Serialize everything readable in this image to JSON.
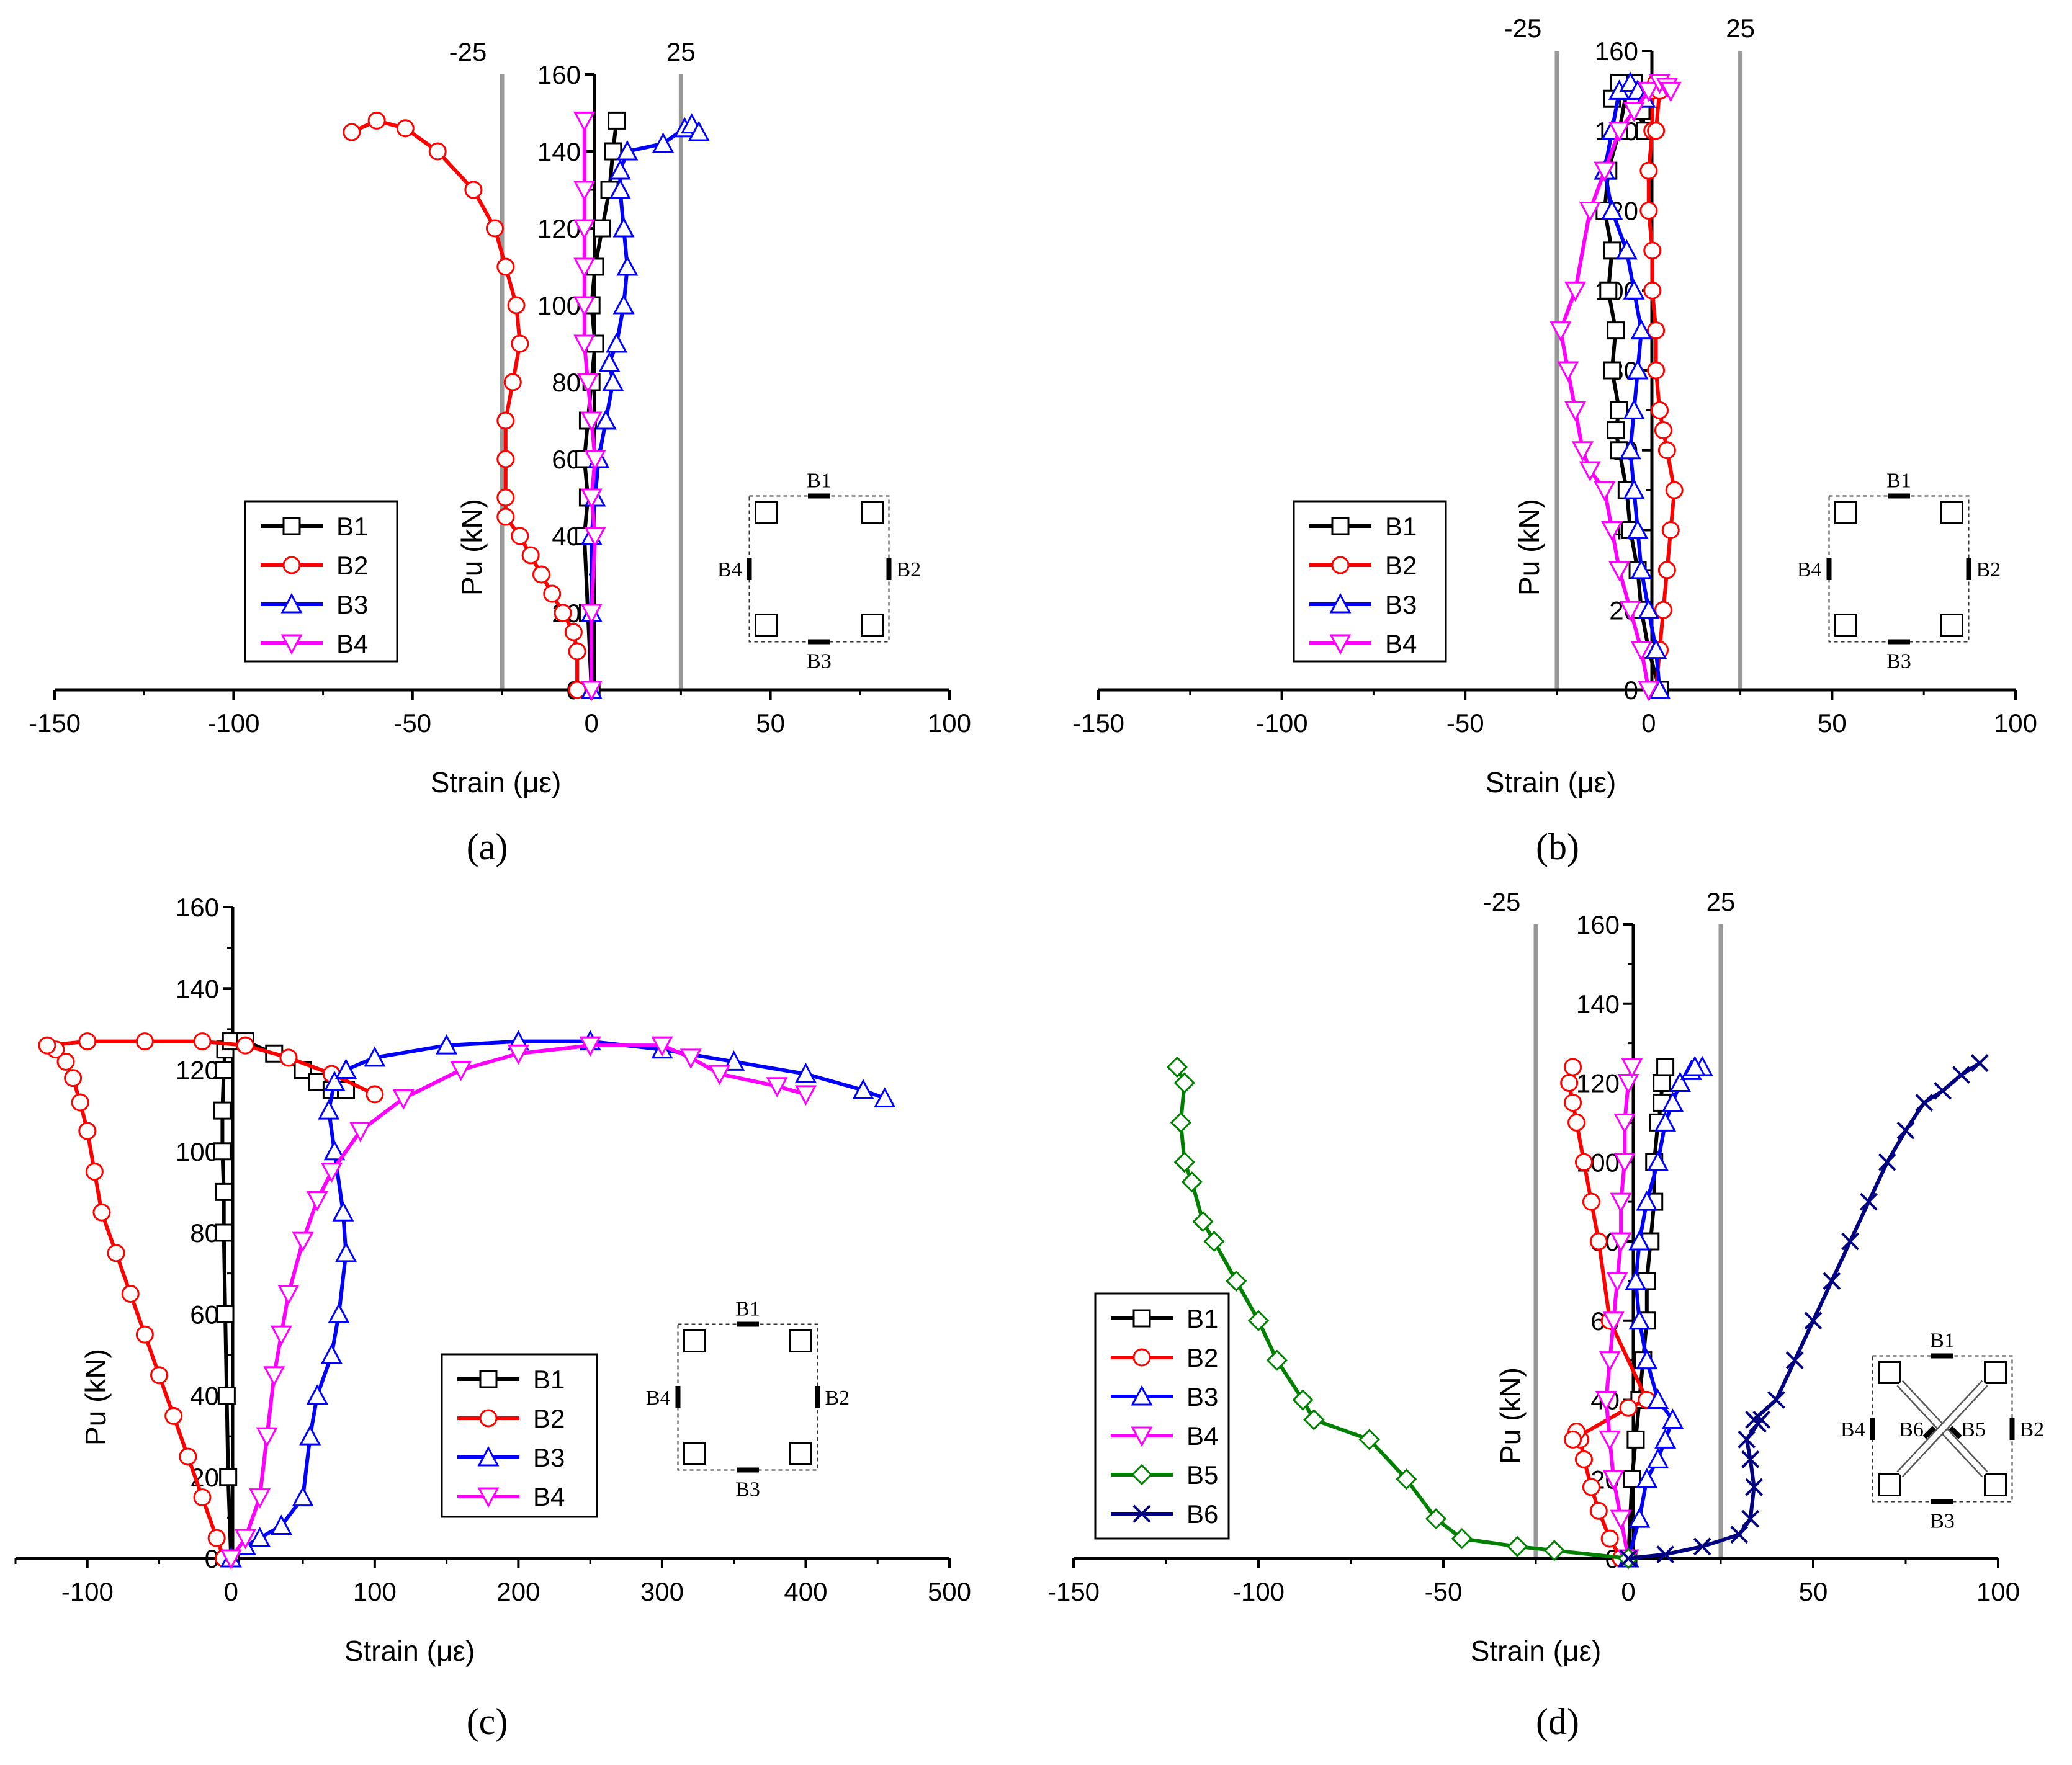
{
  "colors": {
    "B1": "#000000",
    "B2": "#ff0000",
    "B3": "#0000ff",
    "B4": "#ff00ff",
    "B5": "#008000",
    "B6": "#000080",
    "refline": "#999999"
  },
  "chart_data": [
    {
      "panel": "(a)",
      "type": "line",
      "xlabel": "Strain (με)",
      "ylabel": "Pu (kN)",
      "xlim": [
        -150,
        100
      ],
      "ylim": [
        0,
        160
      ],
      "xticks": [
        "-150",
        "-100",
        "-50",
        "0",
        "50",
        "100"
      ],
      "yticks": [
        "0",
        "20",
        "40",
        "60",
        "80",
        "100",
        "120",
        "140",
        "160"
      ],
      "ref_lines": [
        -25,
        25
      ],
      "ref_labels": [
        "-25",
        "25"
      ],
      "legend": [
        "B1",
        "B2",
        "B3",
        "B4"
      ],
      "legend_position": "bottom-left",
      "section_labels": [
        "B1",
        "B2",
        "B3",
        "B4"
      ],
      "series": [
        {
          "name": "B1",
          "marker": "square",
          "x": [
            0,
            -1,
            -2,
            -1,
            -2,
            -1,
            0,
            1,
            0,
            1,
            3,
            5,
            6,
            7
          ],
          "y": [
            0,
            20,
            40,
            50,
            60,
            70,
            80,
            90,
            100,
            110,
            120,
            130,
            140,
            148
          ]
        },
        {
          "name": "B2",
          "marker": "circle",
          "x": [
            -4,
            -4,
            -5,
            -8,
            -11,
            -14,
            -17,
            -20,
            -24,
            -24,
            -24,
            -24,
            -22,
            -20,
            -21,
            -24,
            -27,
            -33,
            -43,
            -52,
            -60,
            -67
          ],
          "y": [
            0,
            10,
            15,
            20,
            25,
            30,
            35,
            40,
            45,
            50,
            60,
            70,
            80,
            90,
            100,
            110,
            120,
            130,
            140,
            146,
            148,
            145
          ]
        },
        {
          "name": "B3",
          "marker": "triangle-up",
          "x": [
            0,
            0,
            0,
            1,
            2,
            4,
            6,
            5,
            7,
            9,
            10,
            9,
            8,
            8,
            10,
            20,
            26,
            28,
            30
          ],
          "y": [
            0,
            20,
            40,
            50,
            60,
            70,
            80,
            85,
            90,
            100,
            110,
            120,
            130,
            135,
            140,
            142,
            146,
            147,
            145
          ]
        },
        {
          "name": "B4",
          "marker": "triangle-down",
          "x": [
            0,
            0,
            1,
            0,
            1,
            0,
            -1,
            -2,
            -2,
            -2,
            -2,
            -2,
            -2
          ],
          "y": [
            0,
            20,
            40,
            50,
            60,
            70,
            80,
            90,
            100,
            110,
            120,
            130,
            148
          ]
        }
      ]
    },
    {
      "panel": "(b)",
      "type": "line",
      "xlabel": "Strain (με)",
      "ylabel": "Pu (kN)",
      "xlim": [
        -150,
        100
      ],
      "ylim": [
        0,
        160
      ],
      "xticks": [
        "-150",
        "-100",
        "-50",
        "0",
        "50",
        "100"
      ],
      "yticks": [
        "0",
        "20",
        "40",
        "60",
        "80",
        "100",
        "120",
        "140",
        "160"
      ],
      "ref_lines": [
        -25,
        25
      ],
      "ref_labels": [
        "-25",
        "25"
      ],
      "legend": [
        "B1",
        "B2",
        "B3",
        "B4"
      ],
      "legend_position": "bottom-left",
      "section_labels": [
        "B1",
        "B2",
        "B3",
        "B4"
      ],
      "series": [
        {
          "name": "B1",
          "marker": "square",
          "x": [
            3,
            0,
            -2,
            -3,
            -5,
            -6,
            -8,
            -9,
            -8,
            -10,
            -9,
            -11,
            -10,
            -12,
            -11,
            -8,
            -6,
            -4,
            -3,
            -2,
            -1,
            -4,
            -6,
            -8,
            -10
          ],
          "y": [
            0,
            10,
            20,
            30,
            40,
            50,
            60,
            65,
            70,
            80,
            90,
            100,
            110,
            120,
            130,
            140,
            150,
            152,
            150,
            145,
            140,
            148,
            150,
            152,
            148
          ]
        },
        {
          "name": "B2",
          "marker": "circle",
          "x": [
            2,
            3,
            4,
            5,
            6,
            7,
            5,
            4,
            3,
            2,
            2,
            1,
            1,
            0,
            0,
            1,
            1,
            2,
            3,
            2
          ],
          "y": [
            0,
            10,
            20,
            30,
            40,
            50,
            60,
            65,
            70,
            80,
            90,
            100,
            110,
            120,
            130,
            140,
            150,
            152,
            150,
            140
          ]
        },
        {
          "name": "B3",
          "marker": "triangle-up",
          "x": [
            3,
            2,
            0,
            -2,
            -3,
            -4,
            -5,
            -4,
            -3,
            -2,
            -4,
            -6,
            -10,
            -12,
            -10,
            -8,
            -5,
            -3,
            -1
          ],
          "y": [
            0,
            10,
            20,
            30,
            40,
            50,
            60,
            70,
            80,
            90,
            100,
            110,
            120,
            130,
            140,
            150,
            152,
            150,
            148
          ]
        },
        {
          "name": "B4",
          "marker": "triangle-down",
          "x": [
            0,
            -2,
            -5,
            -8,
            -10,
            -12,
            -16,
            -18,
            -20,
            -22,
            -24,
            -20,
            -16,
            -12,
            -8,
            -4,
            0,
            3,
            5,
            6
          ],
          "y": [
            0,
            10,
            20,
            30,
            40,
            50,
            55,
            60,
            70,
            80,
            90,
            100,
            120,
            130,
            140,
            145,
            150,
            152,
            151,
            150
          ]
        }
      ]
    },
    {
      "panel": "(c)",
      "type": "line",
      "xlabel": "Strain (με)",
      "ylabel": "Pu (kN)",
      "xlim": [
        -150,
        500
      ],
      "ylim": [
        0,
        160
      ],
      "xticks": [
        "-100",
        "0",
        "100",
        "200",
        "300",
        "400",
        "500"
      ],
      "yticks": [
        "0",
        "20",
        "40",
        "60",
        "80",
        "100",
        "120",
        "140",
        "160"
      ],
      "legend": [
        "B1",
        "B2",
        "B3",
        "B4"
      ],
      "legend_position": "bottom-center",
      "section_labels": [
        "B1",
        "B2",
        "B3",
        "B4"
      ],
      "series": [
        {
          "name": "B1",
          "marker": "square",
          "x": [
            0,
            -2,
            -3,
            -4,
            -5,
            -5,
            -6,
            -6,
            -5,
            -4,
            0,
            10,
            30,
            50,
            60,
            70,
            80
          ],
          "y": [
            0,
            20,
            40,
            60,
            80,
            90,
            100,
            110,
            120,
            125,
            127,
            127,
            124,
            120,
            117,
            115,
            115
          ]
        },
        {
          "name": "B2",
          "marker": "circle",
          "x": [
            -5,
            -10,
            -20,
            -30,
            -40,
            -50,
            -60,
            -70,
            -80,
            -90,
            -95,
            -100,
            -105,
            -110,
            -115,
            -122,
            -128,
            -100,
            -60,
            -20,
            10,
            40,
            70,
            100
          ],
          "y": [
            0,
            5,
            15,
            25,
            35,
            45,
            55,
            65,
            75,
            85,
            95,
            105,
            112,
            118,
            122,
            125,
            126,
            127,
            127,
            127,
            126,
            123,
            119,
            114
          ]
        },
        {
          "name": "B3",
          "marker": "triangle-up",
          "x": [
            0,
            10,
            20,
            35,
            50,
            55,
            60,
            70,
            75,
            80,
            78,
            72,
            68,
            72,
            80,
            100,
            150,
            200,
            250,
            300,
            350,
            400,
            440,
            455
          ],
          "y": [
            0,
            3,
            5,
            8,
            15,
            30,
            40,
            50,
            60,
            75,
            85,
            100,
            110,
            117,
            120,
            123,
            126,
            127,
            127,
            125,
            122,
            119,
            115,
            113
          ]
        },
        {
          "name": "B4",
          "marker": "triangle-down",
          "x": [
            0,
            10,
            20,
            25,
            30,
            35,
            40,
            50,
            60,
            70,
            90,
            120,
            160,
            200,
            250,
            300,
            320,
            340,
            380,
            400
          ],
          "y": [
            0,
            5,
            15,
            30,
            45,
            55,
            65,
            78,
            88,
            95,
            105,
            113,
            120,
            124,
            126,
            126,
            123,
            119,
            116,
            114
          ]
        }
      ]
    },
    {
      "panel": "(d)",
      "type": "line",
      "xlabel": "Strain (με)",
      "ylabel": "Pu (kN)",
      "xlim": [
        -150,
        100
      ],
      "ylim": [
        0,
        160
      ],
      "xticks": [
        "-150",
        "-100",
        "-50",
        "0",
        "50",
        "100"
      ],
      "yticks": [
        "0",
        "20",
        "40",
        "60",
        "80",
        "100",
        "120",
        "140",
        "160"
      ],
      "ref_lines": [
        -25,
        25
      ],
      "ref_labels": [
        "-25",
        "25"
      ],
      "legend": [
        "B1",
        "B2",
        "B3",
        "B4",
        "B5",
        "B6"
      ],
      "legend_position": "bottom-left",
      "section_labels": [
        "B1",
        "B2",
        "B3",
        "B4",
        "B5",
        "B6"
      ],
      "series": [
        {
          "name": "B1",
          "marker": "square",
          "x": [
            0,
            1,
            2,
            3,
            4,
            5,
            5,
            6,
            7,
            7,
            8,
            9,
            9,
            10
          ],
          "y": [
            0,
            20,
            30,
            40,
            50,
            60,
            70,
            80,
            90,
            100,
            110,
            115,
            120,
            124
          ]
        },
        {
          "name": "B2",
          "marker": "circle",
          "x": [
            -2,
            -5,
            -8,
            -10,
            -12,
            -13,
            -14,
            -15,
            0,
            5,
            -5,
            -8,
            -10,
            -12,
            -14,
            -15,
            -16,
            -15
          ],
          "y": [
            0,
            5,
            12,
            18,
            25,
            30,
            32,
            30,
            38,
            40,
            60,
            80,
            90,
            100,
            110,
            115,
            120,
            124
          ]
        },
        {
          "name": "B3",
          "marker": "triangle-up",
          "x": [
            0,
            3,
            5,
            8,
            10,
            12,
            8,
            5,
            3,
            2,
            3,
            5,
            8,
            10,
            12,
            14,
            17,
            20,
            18
          ],
          "y": [
            0,
            10,
            20,
            25,
            30,
            35,
            40,
            50,
            60,
            70,
            80,
            90,
            100,
            110,
            115,
            120,
            123,
            124,
            124
          ]
        },
        {
          "name": "B4",
          "marker": "triangle-down",
          "x": [
            0,
            -2,
            -4,
            -5,
            -6,
            -5,
            -4,
            -3,
            -2,
            -2,
            -1,
            -1,
            0,
            1
          ],
          "y": [
            0,
            10,
            20,
            30,
            40,
            50,
            60,
            70,
            80,
            90,
            100,
            110,
            120,
            124
          ]
        },
        {
          "name": "B5",
          "marker": "diamond",
          "x": [
            0,
            -20,
            -30,
            -45,
            -52,
            -60,
            -70,
            -85,
            -88,
            -95,
            -100,
            -106,
            -112,
            -115,
            -118,
            -120,
            -121,
            -120,
            -122
          ],
          "y": [
            0,
            2,
            3,
            5,
            10,
            20,
            30,
            35,
            40,
            50,
            60,
            70,
            80,
            85,
            95,
            100,
            110,
            120,
            124
          ]
        },
        {
          "name": "B6",
          "marker": "x",
          "x": [
            0,
            10,
            20,
            30,
            33,
            34,
            33,
            32,
            35,
            36,
            34,
            40,
            45,
            50,
            55,
            60,
            65,
            70,
            75,
            80,
            85,
            90,
            95
          ],
          "y": [
            0,
            1,
            3,
            6,
            10,
            18,
            25,
            30,
            34,
            35,
            35,
            40,
            50,
            60,
            70,
            80,
            90,
            100,
            108,
            115,
            118,
            122,
            125
          ]
        }
      ]
    }
  ]
}
